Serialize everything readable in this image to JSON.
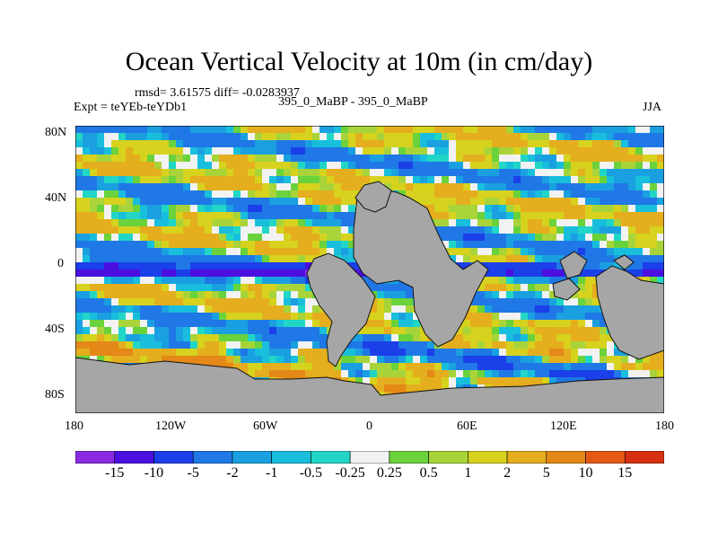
{
  "figure": {
    "title": "Ocean Vertical Velocity at 10m (in cm/day)",
    "stats_line": "rmsd= 3.61575  diff= -0.0283937",
    "case_line": "395_0_MaBP - 395_0_MaBP",
    "expt_line": "Expt = teYEb-teYDb1",
    "season": "JJA"
  },
  "axes": {
    "lat_ticks": [
      "80N",
      "40N",
      "0",
      "40S",
      "80S"
    ],
    "lon_ticks": [
      "180",
      "120W",
      "60W",
      "0",
      "60E",
      "120E",
      "180"
    ]
  },
  "colorbar": {
    "labels": [
      "-15",
      "-10",
      "-5",
      "-2",
      "-1",
      "-0.5",
      "-0.25",
      "0.25",
      "0.5",
      "1",
      "2",
      "5",
      "10",
      "15"
    ],
    "colors": [
      "#8a2be2",
      "#4b0fe0",
      "#1b3fe8",
      "#1f78e6",
      "#1aa0e0",
      "#18bedc",
      "#21d6c6",
      "#f2f2f2",
      "#6ad23a",
      "#a8d43a",
      "#d6d21e",
      "#e4ae1e",
      "#e48818",
      "#e45a14",
      "#d63010"
    ],
    "land_color": "#a6a6a6"
  },
  "chart_data": {
    "type": "heatmap",
    "title": "Ocean Vertical Velocity at 10m (in cm/day)",
    "variable": "ocean vertical velocity difference at 10m",
    "units": "cm/day",
    "season": "JJA",
    "rmsd": 3.61575,
    "diff": -0.0283937,
    "x_range": [
      -180,
      180
    ],
    "y_range": [
      -90,
      90
    ],
    "x_ticks": [
      -180,
      -120,
      -60,
      0,
      60,
      120,
      180
    ],
    "y_ticks": [
      80,
      40,
      0,
      -40,
      -80
    ],
    "contour_levels": [
      -15,
      -10,
      -5,
      -2,
      -1,
      -0.5,
      -0.25,
      0.25,
      0.5,
      1,
      2,
      5,
      10,
      15
    ]
  }
}
